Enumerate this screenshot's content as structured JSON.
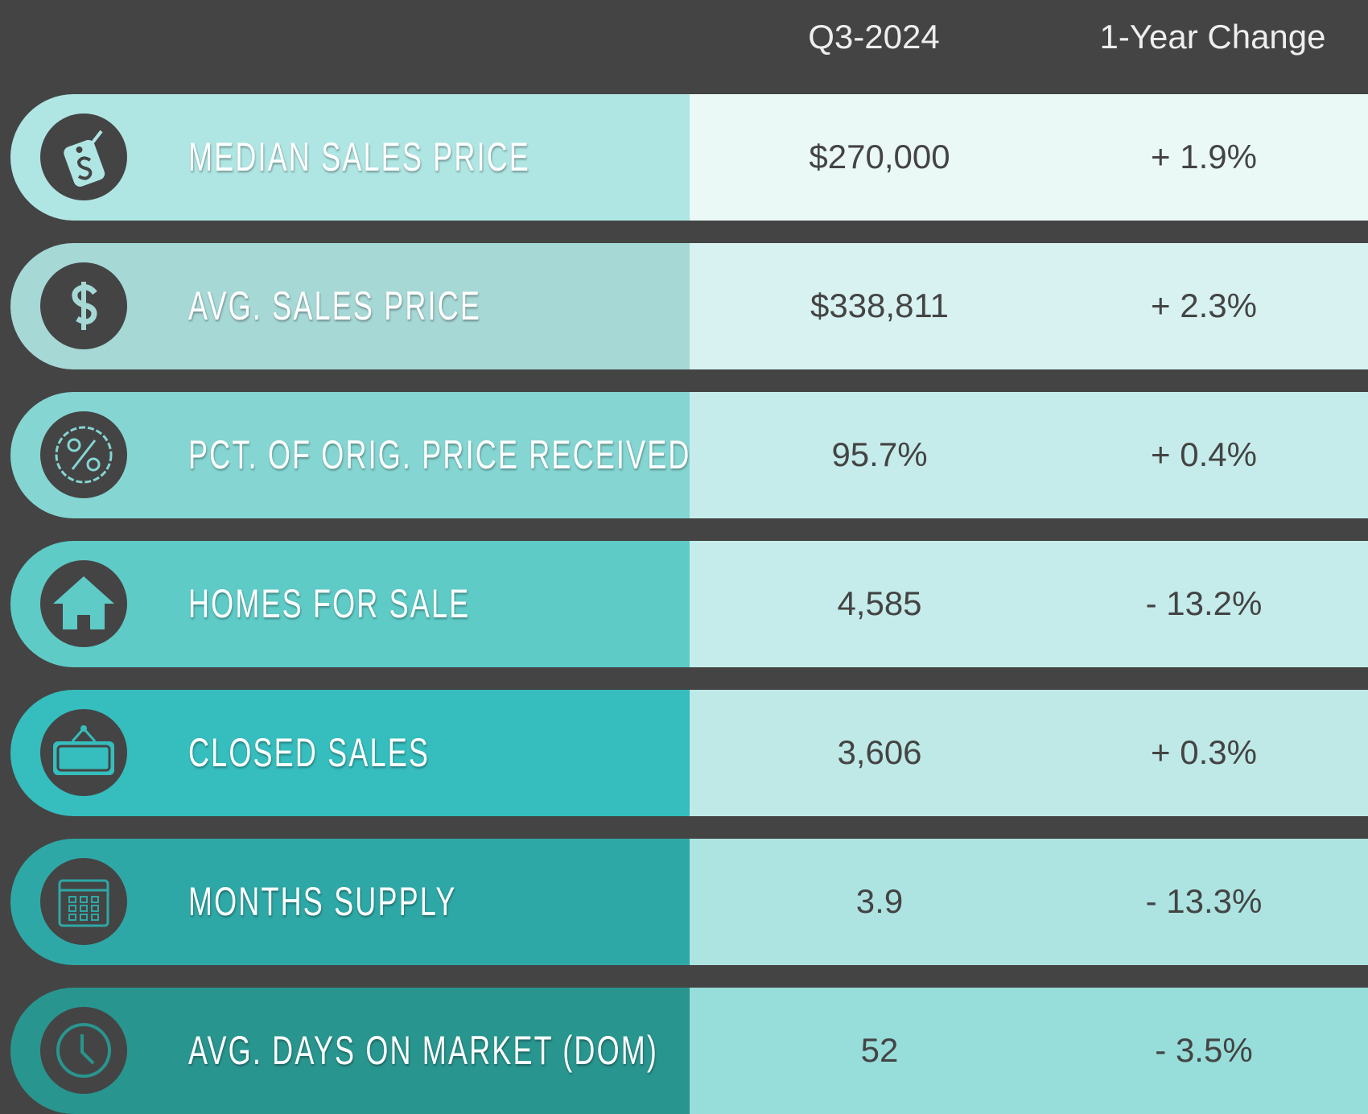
{
  "header": {
    "columns": [
      "Q3-2024",
      "1-Year Change"
    ]
  },
  "rows": [
    {
      "label": "MEDIAN SALES PRICE",
      "value": "$270,000",
      "change": "+ 1.9%"
    },
    {
      "label": "AVG. SALES PRICE",
      "value": "$338,811",
      "change": "+ 2.3%"
    },
    {
      "label": "PCT. OF ORIG. PRICE RECEIVED",
      "value": "95.7%",
      "change": "+ 0.4%"
    },
    {
      "label": "HOMES FOR SALE",
      "value": "4,585",
      "change": "- 13.2%"
    },
    {
      "label": "CLOSED SALES",
      "value": "3,606",
      "change": "+ 0.3%"
    },
    {
      "label": "MONTHS SUPPLY",
      "value": "3.9",
      "change": "- 13.3%"
    },
    {
      "label": "AVG. DAYS ON MARKET (DOM)",
      "value": "52",
      "change": "- 3.5%"
    }
  ]
}
